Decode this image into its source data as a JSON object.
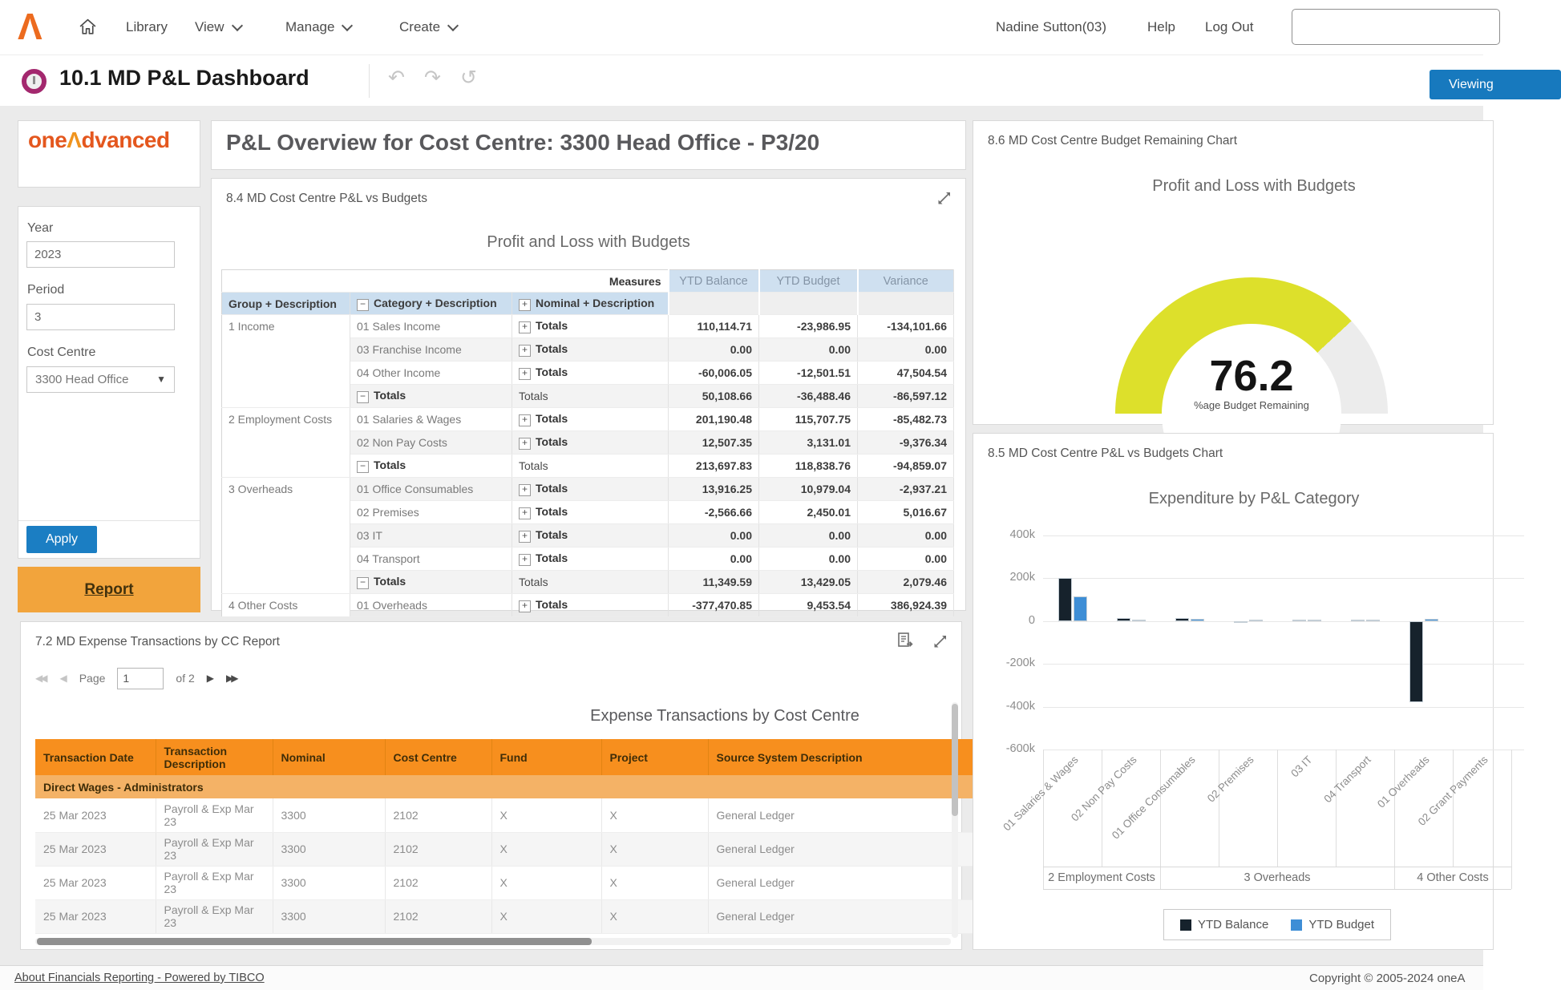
{
  "nav": {
    "library": "Library",
    "view": "View",
    "manage": "Manage",
    "create": "Create",
    "user": "Nadine Sutton(03)",
    "help": "Help",
    "logout": "Log Out"
  },
  "titlebar": {
    "title": "10.1 MD P&L Dashboard",
    "viewing_label": "Viewing"
  },
  "sidebar": {
    "logo_one": "one",
    "logo_caret": "Λ",
    "logo_rest": "dvanced",
    "year_label": "Year",
    "year_value": "2023",
    "period_label": "Period",
    "period_value": "3",
    "cost_centre_label": "Cost Centre",
    "cost_centre_value": "3300 Head Office",
    "apply_label": "Apply",
    "report_label": "Report"
  },
  "overview": {
    "title": "P&L Overview for Cost Centre: 3300 Head Office - P3/20"
  },
  "pnl_panel": {
    "title": "8.4 MD Cost Centre P&L vs Budgets",
    "chart_title": "Profit and Loss with Budgets",
    "measures_label": "Measures",
    "measure_cols": [
      "YTD Balance",
      "YTD Budget",
      "Variance"
    ],
    "dim_cols": [
      "Group + Description",
      "Category + Description",
      "Nominal + Description"
    ],
    "rows": [
      {
        "group": "1 Income",
        "group_span": 4,
        "category": "01 Sales Income",
        "is_total": false,
        "nominal": "Totals",
        "values": [
          "110,114.71",
          "-23,986.95",
          "-134,101.66"
        ]
      },
      {
        "category": "03 Franchise Income",
        "is_total": false,
        "nominal": "Totals",
        "values": [
          "0.00",
          "0.00",
          "0.00"
        ]
      },
      {
        "category": "04 Other Income",
        "is_total": false,
        "nominal": "Totals",
        "values": [
          "-60,006.05",
          "-12,501.51",
          "47,504.54"
        ]
      },
      {
        "category": "Totals",
        "is_total": true,
        "nominal": "Totals",
        "values": [
          "50,108.66",
          "-36,488.46",
          "-86,597.12"
        ]
      },
      {
        "group": "2 Employment Costs",
        "group_span": 3,
        "category": "01 Salaries & Wages",
        "is_total": false,
        "nominal": "Totals",
        "values": [
          "201,190.48",
          "115,707.75",
          "-85,482.73"
        ]
      },
      {
        "category": "02 Non Pay Costs",
        "is_total": false,
        "nominal": "Totals",
        "values": [
          "12,507.35",
          "3,131.01",
          "-9,376.34"
        ]
      },
      {
        "category": "Totals",
        "is_total": true,
        "nominal": "Totals",
        "values": [
          "213,697.83",
          "118,838.76",
          "-94,859.07"
        ]
      },
      {
        "group": "3 Overheads",
        "group_span": 5,
        "category": "01 Office Consumables",
        "is_total": false,
        "nominal": "Totals",
        "values": [
          "13,916.25",
          "10,979.04",
          "-2,937.21"
        ]
      },
      {
        "category": "02 Premises",
        "is_total": false,
        "nominal": "Totals",
        "values": [
          "-2,566.66",
          "2,450.01",
          "5,016.67"
        ]
      },
      {
        "category": "03 IT",
        "is_total": false,
        "nominal": "Totals",
        "values": [
          "0.00",
          "0.00",
          "0.00"
        ]
      },
      {
        "category": "04 Transport",
        "is_total": false,
        "nominal": "Totals",
        "values": [
          "0.00",
          "0.00",
          "0.00"
        ]
      },
      {
        "category": "Totals",
        "is_total": true,
        "nominal": "Totals",
        "values": [
          "11,349.59",
          "13,429.05",
          "2,079.46"
        ]
      },
      {
        "group": "4 Other Costs",
        "group_span": 1,
        "category": "01 Overheads",
        "is_total": false,
        "nominal": "Totals",
        "values": [
          "-377,470.85",
          "9,453.54",
          "386,924.39"
        ]
      }
    ]
  },
  "expense_panel": {
    "title": "7.2 MD Expense Transactions by CC Report",
    "page_label": "Page",
    "page_value": "1",
    "of_text": "of 2",
    "table_title": "Expense Transactions by Cost Centre",
    "columns": [
      "Transaction Date",
      "Transaction Description",
      "Nominal",
      "Cost Centre",
      "Fund",
      "Project",
      "Source System Description"
    ],
    "group_label": "Direct Wages - Administrators",
    "rows": [
      [
        "25 Mar 2023",
        "Payroll & Exp Mar 23",
        "3300",
        "2102",
        "X",
        "X",
        "General Ledger"
      ],
      [
        "25 Mar 2023",
        "Payroll & Exp Mar 23",
        "3300",
        "2102",
        "X",
        "X",
        "General Ledger"
      ],
      [
        "25 Mar 2023",
        "Payroll & Exp Mar 23",
        "3300",
        "2102",
        "X",
        "X",
        "General Ledger"
      ],
      [
        "25 Mar 2023",
        "Payroll & Exp Mar 23",
        "3300",
        "2102",
        "X",
        "X",
        "General Ledger"
      ]
    ]
  },
  "gauge_panel": {
    "title": "8.6 MD Cost Centre Budget Remaining Chart",
    "chart_title": "Profit and Loss with Budgets",
    "value": "76.2",
    "label": "%age Budget Remaining"
  },
  "bar_panel": {
    "title": "8.5 MD Cost Centre P&L vs Budgets Chart",
    "chart_title": "Expenditure by P&L Category"
  },
  "footer": {
    "link": "About Financials Reporting - Powered by TIBCO",
    "copyright": "Copyright © 2005-2024 oneA"
  },
  "colors": {
    "accent_blue": "#1779be",
    "apply_blue": "#1b7ec3",
    "header_orange": "#f78f1e",
    "group_orange": "#f4b266",
    "report_orange": "#f2a43c",
    "logo_orange": "#e4571e",
    "table_header_blue": "#cfe0f0",
    "gauge_yellow": "#dde02b",
    "gauge_track": "#ececec",
    "bar_black": "#16222c",
    "bar_blue": "#3e8ed6"
  },
  "chart_data": [
    {
      "type": "gauge",
      "title": "Profit and Loss with Budgets",
      "value": 76.2,
      "max": 100,
      "label": "%age Budget Remaining",
      "color": "#dde02b",
      "track": "#ececec"
    },
    {
      "type": "bar",
      "title": "Expenditure by P&L Category",
      "categories": [
        "01 Salaries & Wages",
        "02 Non Pay Costs",
        "01 Office Consumables",
        "02 Premises",
        "03 IT",
        "04 Transport",
        "01 Overheads",
        "02 Grant Payments"
      ],
      "groups": [
        {
          "label": "2 Employment Costs",
          "span": 2
        },
        {
          "label": "3 Overheads",
          "span": 4
        },
        {
          "label": "4 Other Costs",
          "span": 2
        }
      ],
      "series": [
        {
          "name": "YTD Balance",
          "color": "#16222c",
          "values": [
            201190.48,
            12507.35,
            13916.25,
            -2566.66,
            0,
            0,
            -377470.85,
            null
          ]
        },
        {
          "name": "YTD Budget",
          "color": "#3e8ed6",
          "values": [
            115707.75,
            3131.01,
            10979.04,
            2450.01,
            0,
            0,
            9453.54,
            null
          ]
        }
      ],
      "yticks": [
        {
          "label": "400k",
          "value": 400000
        },
        {
          "label": "200k",
          "value": 200000
        },
        {
          "label": "0",
          "value": 0
        },
        {
          "label": "-200k",
          "value": -200000
        },
        {
          "label": "-400k",
          "value": -400000
        },
        {
          "label": "-600k",
          "value": -600000
        }
      ],
      "ylim": [
        -600000,
        400000
      ],
      "grid": true,
      "legend_position": "bottom"
    }
  ]
}
